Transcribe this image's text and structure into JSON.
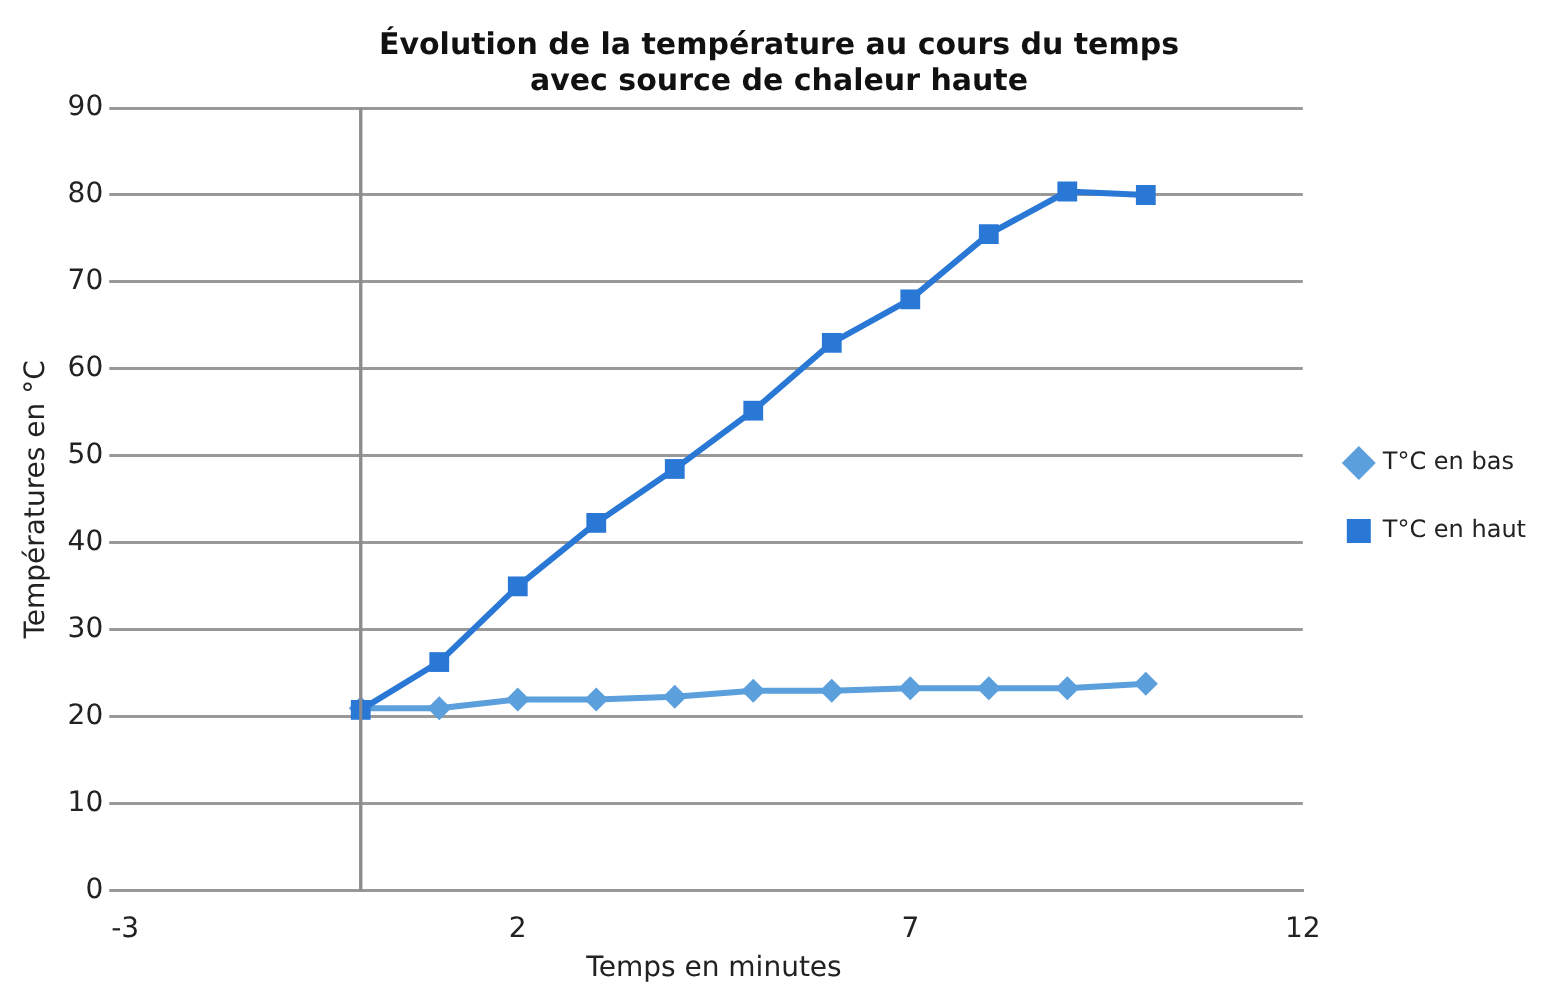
{
  "chart_data": {
    "type": "line",
    "title": "Évolution de la température au cours du temps\navec source de chaleur haute",
    "xlabel": "Temps en minutes",
    "ylabel": "Températures en °C",
    "x": [
      0,
      1,
      2,
      3,
      4,
      5,
      6,
      7,
      8,
      9,
      10
    ],
    "series": [
      {
        "name": "T°C en bas",
        "color": "#5b9fdc",
        "marker": "diamond",
        "values": [
          21,
          21,
          22,
          22,
          22.3,
          23,
          23,
          23.3,
          23.3,
          23.3,
          23.8
        ]
      },
      {
        "name": "T°C en haut",
        "color": "#2a78d6",
        "marker": "square",
        "values": [
          20.8,
          26.3,
          35,
          42.3,
          48.5,
          55.2,
          63,
          68,
          75.5,
          80.4,
          80
        ]
      }
    ],
    "xlim": [
      -3,
      12
    ],
    "xticks": [
      -3,
      2,
      7,
      12
    ],
    "ylim": [
      0,
      90
    ],
    "yticks": [
      0,
      10,
      20,
      30,
      40,
      50,
      60,
      70,
      80,
      90
    ],
    "grid": "y",
    "legend": "right"
  }
}
